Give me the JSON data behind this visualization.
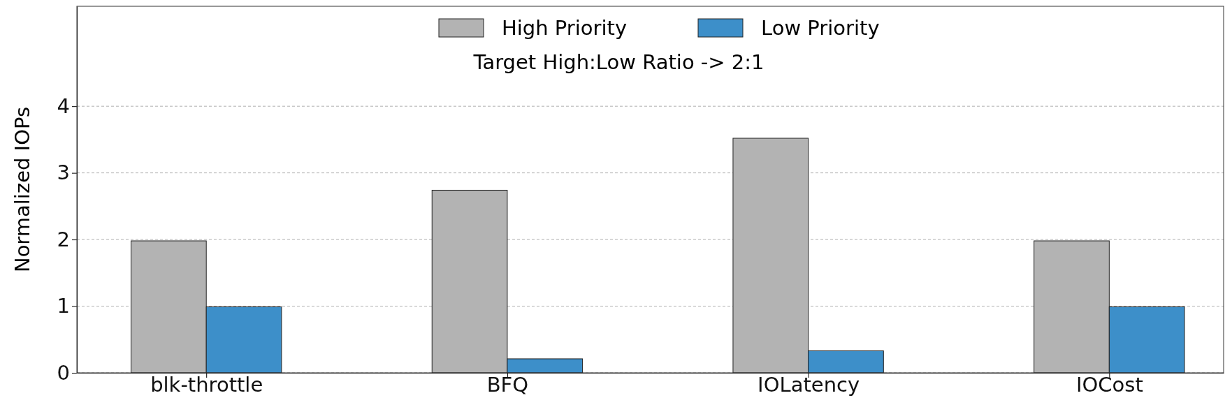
{
  "chart_data": {
    "type": "bar",
    "ylabel": "Normalized IOPs",
    "categories": [
      "blk-throttle",
      "BFQ",
      "IOLatency",
      "IOCost"
    ],
    "series": [
      {
        "name": "High Priority",
        "color": "#b3b3b3",
        "values": [
          1.98,
          2.74,
          3.52,
          1.98
        ]
      },
      {
        "name": "Low Priority",
        "color": "#3d8fc9",
        "values": [
          0.99,
          0.21,
          0.33,
          0.99
        ]
      }
    ],
    "ylim": [
      0,
      5.5
    ],
    "yticks": [
      0,
      1,
      2,
      3,
      4
    ],
    "grid": "y",
    "legend": "top",
    "annotations": [
      "Target High:Low Ratio -> 2:1"
    ]
  }
}
